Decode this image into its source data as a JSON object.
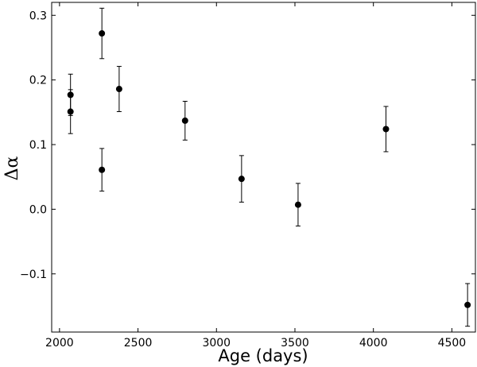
{
  "chart_data": {
    "type": "scatter",
    "title": "",
    "xlabel": "Age (days)",
    "ylabel": "Δα",
    "xlim": [
      1950,
      4650
    ],
    "ylim": [
      -0.19,
      0.32
    ],
    "xticks": [
      2000,
      2500,
      3000,
      3500,
      4000,
      4500
    ],
    "xtick_labels": [
      "2000",
      "2500",
      "3000",
      "3500",
      "4000",
      "4500"
    ],
    "yticks": [
      -0.1,
      0.0,
      0.1,
      0.2,
      0.3
    ],
    "ytick_labels": [
      "−0.1",
      "0.0",
      "0.1",
      "0.2",
      "0.3"
    ],
    "grid": false,
    "marker_color": "#000000",
    "series": [
      {
        "points": [
          {
            "x": 2070,
            "y": 0.177,
            "err": 0.032
          },
          {
            "x": 2070,
            "y": 0.151,
            "err": 0.034
          },
          {
            "x": 2270,
            "y": 0.272,
            "err": 0.039
          },
          {
            "x": 2270,
            "y": 0.061,
            "err": 0.033
          },
          {
            "x": 2380,
            "y": 0.186,
            "err": 0.035
          },
          {
            "x": 2800,
            "y": 0.137,
            "err": 0.03
          },
          {
            "x": 3160,
            "y": 0.047,
            "err": 0.036
          },
          {
            "x": 3520,
            "y": 0.007,
            "err": 0.033
          },
          {
            "x": 4080,
            "y": 0.124,
            "err": 0.035
          },
          {
            "x": 4600,
            "y": -0.148,
            "err": 0.033
          }
        ]
      }
    ]
  }
}
